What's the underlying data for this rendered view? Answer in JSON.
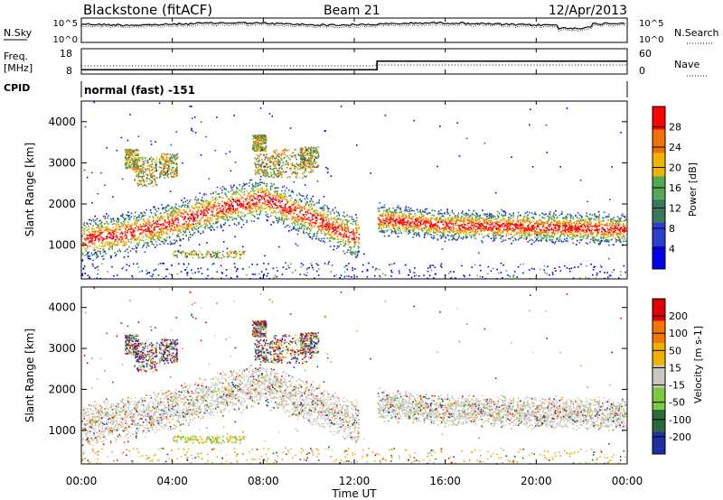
{
  "header": {
    "station": "Blackstone (fitACF)",
    "beam": "Beam 21",
    "date": "12/Apr/2013"
  },
  "nsky_panel": {
    "left_label": "N.Sky",
    "right_label": "N.Search",
    "left_ticks": [
      "10^5",
      "10^0"
    ],
    "right_ticks": [
      "10^5",
      "10^0"
    ]
  },
  "freq_panel": {
    "left_label_1": "Freq.",
    "left_label_2": "[MHz]",
    "left_ticks": [
      "18",
      "8"
    ],
    "right_label": "Nave",
    "right_ticks": [
      "60",
      "0"
    ]
  },
  "cpid": {
    "label": "CPID",
    "value": "normal (fast) -151"
  },
  "power_panel": {
    "ylabel": "Slant Range [km]",
    "yticks": [
      "4000",
      "3000",
      "2000",
      "1000"
    ],
    "colorbar_label": "Power [dB]",
    "colorbar_ticks": [
      "28",
      "24",
      "20",
      "16",
      "12",
      "8",
      "4"
    ],
    "colors": [
      "#0000ee",
      "#2a3fd0",
      "#3a7a5a",
      "#55a855",
      "#f0b400",
      "#f07000",
      "#ff0000"
    ]
  },
  "velocity_panel": {
    "ylabel": "Slant Range [km]",
    "yticks": [
      "4000",
      "3000",
      "2000",
      "1000"
    ],
    "colorbar_label": "Velocity [m s-1]",
    "colorbar_ticks": [
      "200",
      "100",
      "50",
      "15",
      "-15",
      "-50",
      "-100",
      "-200"
    ],
    "colors": [
      "#2030a0",
      "#2a6a3a",
      "#7cc840",
      "#c8c8c0",
      "#f0b000",
      "#f07800",
      "#e00000"
    ]
  },
  "xaxis": {
    "label": "Time UT",
    "ticks": [
      "00:00",
      "04:00",
      "08:00",
      "12:00",
      "16:00",
      "20:00",
      "00:00"
    ]
  },
  "chart_data": {
    "type": "heatmap",
    "title": "Blackstone (fitACF) Beam 21 12/Apr/2013",
    "xlabel": "Time UT",
    "ylabel": "Slant Range [km]",
    "x_range_hours": [
      0,
      24
    ],
    "y_range_km": [
      180,
      4500
    ],
    "frequency_mhz": [
      {
        "time_hours": 0,
        "value": 10.5
      },
      {
        "time_hours": 13,
        "value": 10.5
      },
      {
        "time_hours": 13,
        "value": 15.5
      },
      {
        "time_hours": 24,
        "value": 15.5
      }
    ],
    "power_colorbar_db": [
      4,
      8,
      12,
      16,
      20,
      24,
      28
    ],
    "velocity_colorbar_ms": [
      200,
      100,
      50,
      15,
      -15,
      -50,
      -100,
      -200
    ],
    "main_echo_band_km": [
      {
        "time_hours": 0,
        "range_km": 1150
      },
      {
        "time_hours": 2,
        "range_km": 1300
      },
      {
        "time_hours": 4,
        "range_km": 1550
      },
      {
        "time_hours": 6,
        "range_km": 1900
      },
      {
        "time_hours": 8,
        "range_km": 2150
      },
      {
        "time_hours": 10,
        "range_km": 1700
      },
      {
        "time_hours": 12,
        "range_km": 1200
      },
      {
        "time_hours": 13,
        "range_km": 1650
      },
      {
        "time_hours": 16,
        "range_km": 1500
      },
      {
        "time_hours": 20,
        "range_km": 1450
      },
      {
        "time_hours": 24,
        "range_km": 1400
      }
    ]
  }
}
